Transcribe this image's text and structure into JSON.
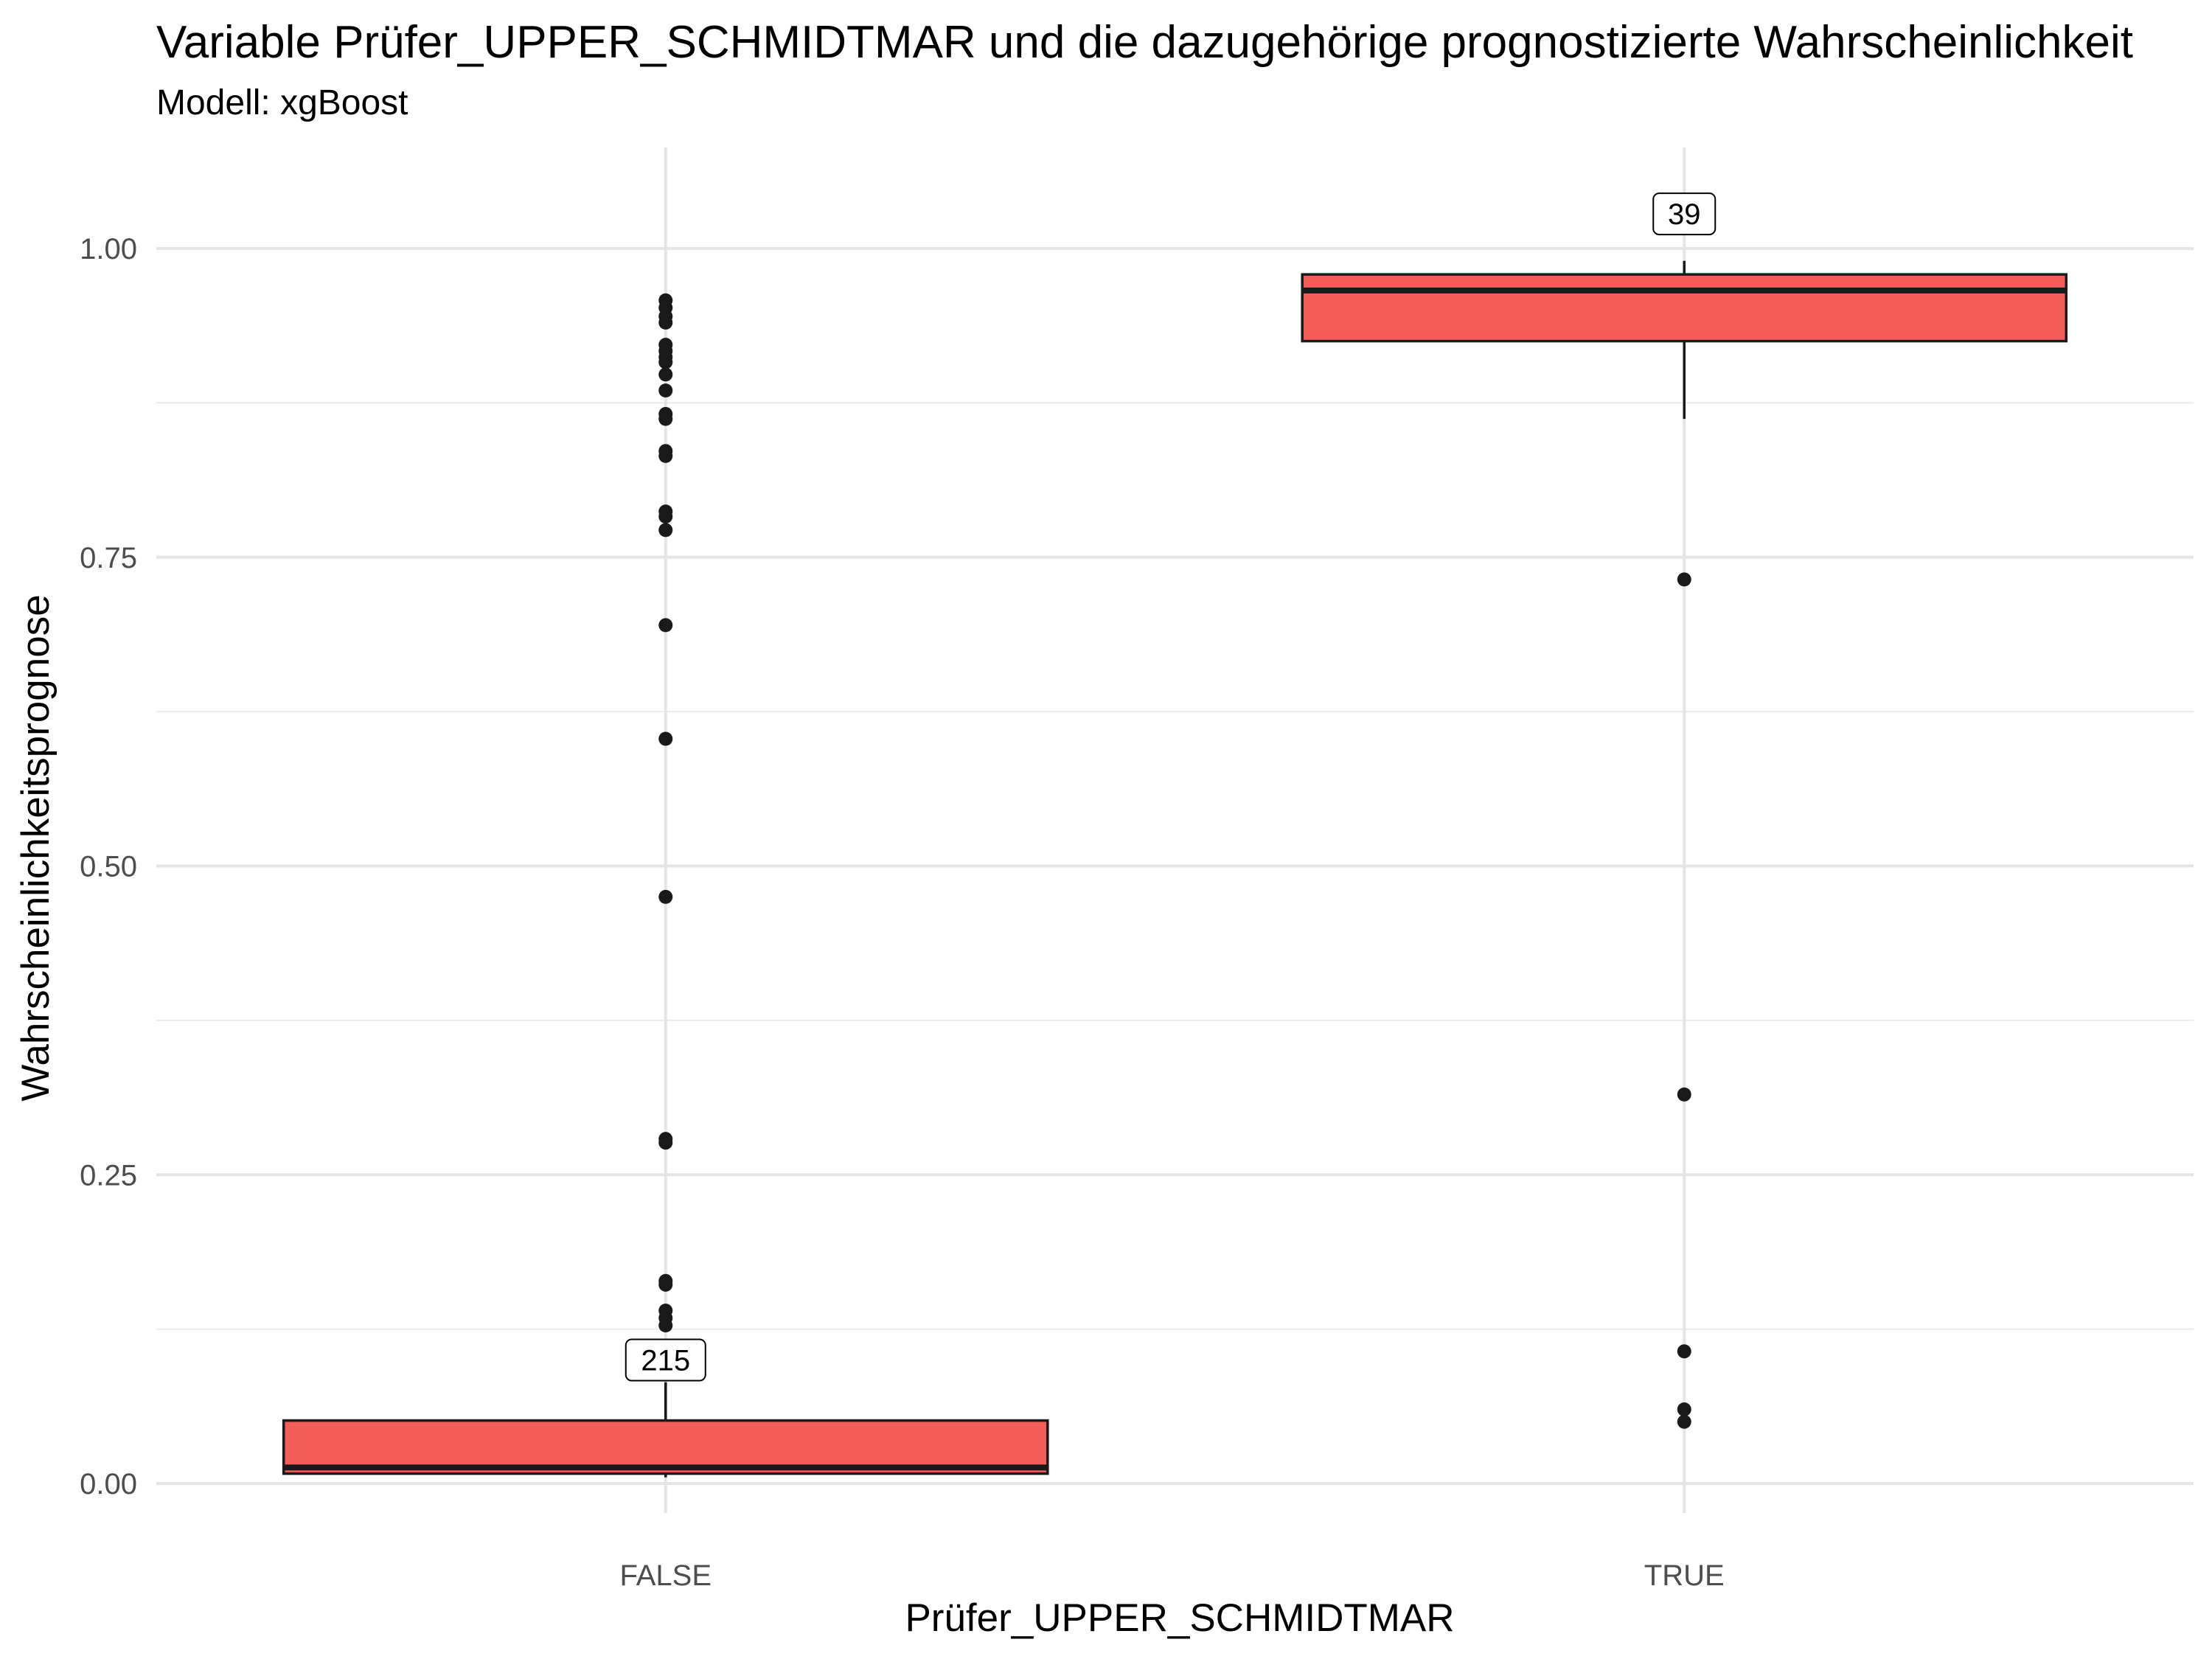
{
  "chart_data": {
    "type": "boxplot",
    "title": "Variable Prüfer_UPPER_SCHMIDTMAR und die dazugehörige prognostizierte Wahrscheinlichkeit",
    "subtitle": "Modell: xgBoost",
    "xlabel": "Prüfer_UPPER_SCHMIDTMAR",
    "ylabel": "Wahrscheinlichkeitsprognose",
    "ylim": [
      -0.025,
      1.08
    ],
    "yticks": [
      0.0,
      0.25,
      0.5,
      0.75,
      1.0
    ],
    "ytick_labels": [
      "0.00",
      "0.25",
      "0.50",
      "0.75",
      "1.00"
    ],
    "categories": [
      "FALSE",
      "TRUE"
    ],
    "fill_color": "#F35E5A",
    "grid": true,
    "boxes": [
      {
        "category": "FALSE",
        "count_label": "215",
        "whisker_low": 0.005,
        "q1": 0.008,
        "median": 0.013,
        "q3": 0.051,
        "whisker_high": 0.082,
        "label_y": 0.1,
        "outliers": [
          0.958,
          0.952,
          0.945,
          0.94,
          0.922,
          0.917,
          0.912,
          0.908,
          0.898,
          0.885,
          0.866,
          0.862,
          0.836,
          0.832,
          0.787,
          0.783,
          0.772,
          0.695,
          0.603,
          0.475,
          0.279,
          0.276,
          0.164,
          0.161,
          0.14,
          0.134,
          0.128
        ]
      },
      {
        "category": "TRUE",
        "count_label": "39",
        "whisker_low": 0.862,
        "q1": 0.925,
        "median": 0.966,
        "q3": 0.979,
        "whisker_high": 0.99,
        "label_y": 1.028,
        "outliers": [
          0.732,
          0.315,
          0.107,
          0.06,
          0.05
        ]
      }
    ]
  }
}
